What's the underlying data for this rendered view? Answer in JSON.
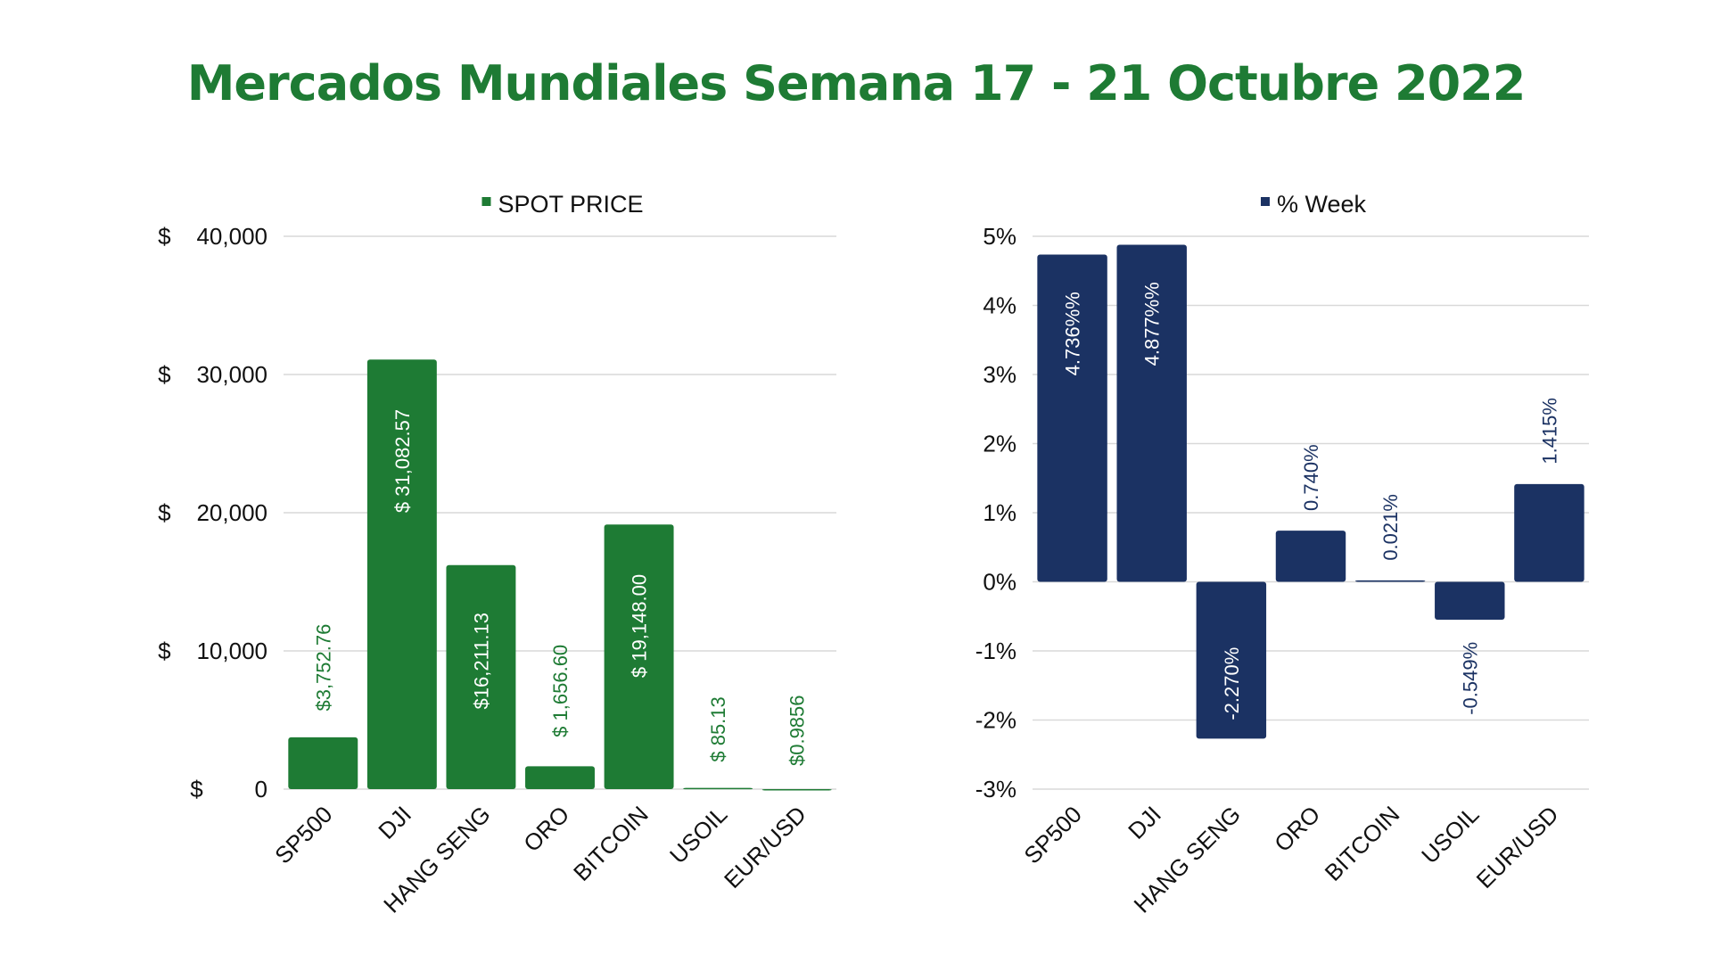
{
  "page": {
    "title": "Mercados Mundiales Semana 17 - 21 Octubre 2022"
  },
  "colors": {
    "title": "#1e7b34",
    "spot": "#1e7b34",
    "week": "#1b3263",
    "label_light": "#ffffff"
  },
  "chart_data": [
    {
      "type": "bar",
      "categories": [
        "SP500",
        "DJI",
        "HANG SENG",
        "ORO",
        "BITCOIN",
        "USOIL",
        "EUR/USD"
      ],
      "series": [
        {
          "name": "SPOT PRICE",
          "values": [
            3752.76,
            31082.57,
            16211.13,
            1656.6,
            19148.0,
            85.13,
            0.9856
          ],
          "data_labels": [
            "$3,752.76",
            "$ 31,082.57",
            "$16,211.13",
            "$ 1,656.60",
            "$ 19,148.00",
            "$ 85.13",
            "$0.9856"
          ]
        }
      ],
      "ylim": [
        0,
        40000
      ],
      "yticks": [
        0,
        10000,
        20000,
        30000,
        40000
      ],
      "ytick_labels": [
        "$        0",
        "$    10,000",
        "$    20,000",
        "$    30,000",
        "$    40,000"
      ],
      "legend_position": "top",
      "grid": true
    },
    {
      "type": "bar",
      "categories": [
        "SP500",
        "DJI",
        "HANG SENG",
        "ORO",
        "BITCOIN",
        "USOIL",
        "EUR/USD"
      ],
      "series": [
        {
          "name": "% Week",
          "values": [
            4.736,
            4.877,
            -2.27,
            0.74,
            0.021,
            -0.549,
            1.415
          ],
          "data_labels": [
            "4.736%%",
            "4.877%%",
            "-2.270%",
            "0.740%",
            "0.021%",
            "-0.549%",
            "1.415%"
          ]
        }
      ],
      "ylim": [
        -3,
        5
      ],
      "yticks": [
        -3,
        -2,
        -1,
        0,
        1,
        2,
        3,
        4,
        5
      ],
      "ytick_labels": [
        "-3%",
        "-2%",
        "-1%",
        "0%",
        "1%",
        "2%",
        "3%",
        "4%",
        "5%"
      ],
      "legend_position": "top",
      "grid": true
    }
  ]
}
